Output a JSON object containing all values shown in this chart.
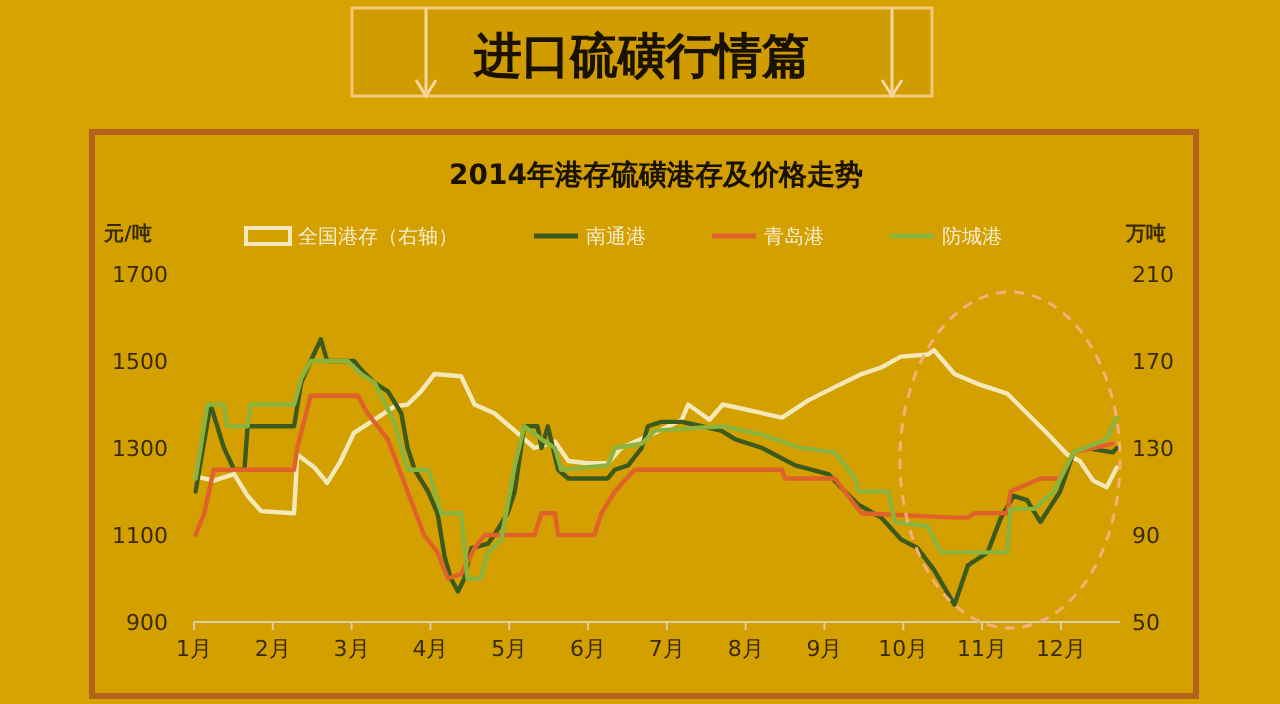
{
  "chart_data": {
    "type": "line",
    "title": "进口硫磺行情篇",
    "subtitle": "2014年港存硫磺港存及价格走势",
    "ylabel": "元/吨",
    "y2label": "万吨",
    "xlim": [
      1,
      12.75
    ],
    "xticks": [
      {
        "value": 1,
        "label": "1月"
      },
      {
        "value": 2,
        "label": "2月"
      },
      {
        "value": 3,
        "label": "3月"
      },
      {
        "value": 4,
        "label": "4月"
      },
      {
        "value": 5,
        "label": "5月"
      },
      {
        "value": 6,
        "label": "6月"
      },
      {
        "value": 7,
        "label": "7月"
      },
      {
        "value": 8,
        "label": "8月"
      },
      {
        "value": 9,
        "label": "9月"
      },
      {
        "value": 10,
        "label": "10月"
      },
      {
        "value": 11,
        "label": "11月"
      },
      {
        "value": 12,
        "label": "12月"
      }
    ],
    "ylim": [
      900,
      1700
    ],
    "yticks": [
      900,
      1100,
      1300,
      1500,
      1700
    ],
    "y2lim": [
      50,
      210
    ],
    "y2ticks": [
      50,
      90,
      130,
      170,
      210
    ],
    "legend": "top",
    "grid": false,
    "marker": "none",
    "line_style": "solid",
    "series": [
      {
        "name": "全国港存（右轴）",
        "axis": "y2",
        "color": "#f2e8b8",
        "x": [
          1.02,
          1.25,
          1.51,
          1.68,
          1.85,
          2.27,
          2.31,
          2.53,
          2.69,
          2.86,
          3.03,
          3.29,
          3.54,
          3.71,
          3.88,
          4.05,
          4.39,
          4.56,
          4.81,
          5.07,
          5.32,
          5.58,
          5.75,
          6.0,
          6.25,
          6.42,
          6.85,
          7.19,
          7.27,
          7.54,
          7.71,
          8.46,
          8.8,
          9.13,
          9.47,
          9.72,
          9.97,
          10.31,
          10.39,
          10.65,
          10.98,
          11.32,
          11.57,
          11.82,
          12.08,
          12.24,
          12.41,
          12.58,
          12.71
        ],
        "values": [
          117,
          115,
          118,
          108,
          101,
          100,
          127,
          121,
          114,
          124,
          137,
          143,
          149,
          150,
          156,
          164,
          163,
          150,
          146,
          138,
          130,
          133,
          124,
          123,
          123,
          130,
          137,
          143,
          150,
          143,
          150,
          144,
          152,
          158,
          164,
          167,
          172,
          173,
          175,
          164,
          159,
          155,
          146,
          137,
          127,
          124,
          115,
          112,
          121
        ]
      },
      {
        "name": "南通港",
        "color": "#3d5a1e",
        "x": [
          1.02,
          1.21,
          1.38,
          1.51,
          1.64,
          1.68,
          2.27,
          2.36,
          2.48,
          2.61,
          2.69,
          3.03,
          3.12,
          3.29,
          3.46,
          3.63,
          3.71,
          3.8,
          3.97,
          4.09,
          4.18,
          4.26,
          4.35,
          4.43,
          4.52,
          4.73,
          4.81,
          4.98,
          5.07,
          5.15,
          5.19,
          5.36,
          5.41,
          5.49,
          5.62,
          5.75,
          6.25,
          6.34,
          6.51,
          6.68,
          6.76,
          6.93,
          7.19,
          7.44,
          7.69,
          7.87,
          8.21,
          8.63,
          9.05,
          9.26,
          9.43,
          9.72,
          9.97,
          10.18,
          10.39,
          10.65,
          10.82,
          11.07,
          11.24,
          11.4,
          11.57,
          11.74,
          11.99,
          12.16,
          12.33,
          12.66,
          12.71
        ],
        "values": [
          1200,
          1400,
          1300,
          1250,
          1250,
          1350,
          1350,
          1450,
          1500,
          1550,
          1500,
          1500,
          1480,
          1450,
          1430,
          1380,
          1300,
          1250,
          1200,
          1150,
          1050,
          1000,
          970,
          1000,
          1070,
          1080,
          1100,
          1150,
          1200,
          1300,
          1350,
          1350,
          1300,
          1350,
          1250,
          1230,
          1230,
          1250,
          1260,
          1300,
          1350,
          1360,
          1360,
          1350,
          1340,
          1320,
          1300,
          1260,
          1240,
          1200,
          1170,
          1140,
          1090,
          1070,
          1020,
          940,
          1030,
          1060,
          1140,
          1190,
          1180,
          1130,
          1200,
          1290,
          1300,
          1290,
          1300
        ]
      },
      {
        "name": "青岛港",
        "color": "#e0622a",
        "x": [
          1.02,
          1.13,
          1.25,
          2.27,
          2.31,
          2.48,
          3.08,
          3.2,
          3.46,
          3.71,
          3.92,
          4.09,
          4.22,
          4.39,
          4.56,
          4.69,
          5.32,
          5.41,
          5.58,
          5.62,
          6.08,
          6.17,
          6.34,
          6.59,
          8.46,
          8.5,
          9.13,
          9.3,
          9.47,
          10.65,
          10.82,
          10.9,
          11.32,
          11.36,
          11.74,
          11.99,
          12.16,
          12.41,
          12.66
        ],
        "values": [
          1100,
          1150,
          1250,
          1250,
          1300,
          1420,
          1420,
          1380,
          1320,
          1200,
          1100,
          1060,
          1000,
          1010,
          1070,
          1100,
          1100,
          1150,
          1150,
          1100,
          1100,
          1150,
          1200,
          1250,
          1250,
          1230,
          1230,
          1190,
          1150,
          1140,
          1140,
          1150,
          1150,
          1200,
          1230,
          1230,
          1290,
          1300,
          1310
        ]
      },
      {
        "name": "防城港",
        "color": "#8cb43c",
        "x": [
          1.02,
          1.17,
          1.38,
          1.42,
          1.68,
          1.72,
          2.27,
          2.36,
          2.48,
          2.95,
          3.12,
          3.29,
          3.54,
          3.71,
          3.97,
          4.14,
          4.39,
          4.47,
          4.64,
          4.73,
          4.9,
          5.07,
          5.19,
          5.41,
          5.58,
          5.66,
          6.25,
          6.34,
          6.68,
          6.85,
          7.71,
          8.21,
          8.71,
          9.13,
          9.39,
          9.43,
          9.81,
          9.89,
          10.31,
          10.48,
          11.32,
          11.36,
          11.66,
          11.91,
          12.16,
          12.58,
          12.71
        ],
        "values": [
          1230,
          1400,
          1400,
          1350,
          1350,
          1400,
          1400,
          1460,
          1500,
          1500,
          1470,
          1450,
          1360,
          1250,
          1250,
          1150,
          1150,
          1000,
          1000,
          1060,
          1090,
          1260,
          1350,
          1320,
          1300,
          1250,
          1260,
          1300,
          1310,
          1340,
          1350,
          1330,
          1300,
          1290,
          1230,
          1200,
          1200,
          1130,
          1120,
          1060,
          1060,
          1160,
          1160,
          1200,
          1290,
          1320,
          1370
        ]
      }
    ]
  }
}
